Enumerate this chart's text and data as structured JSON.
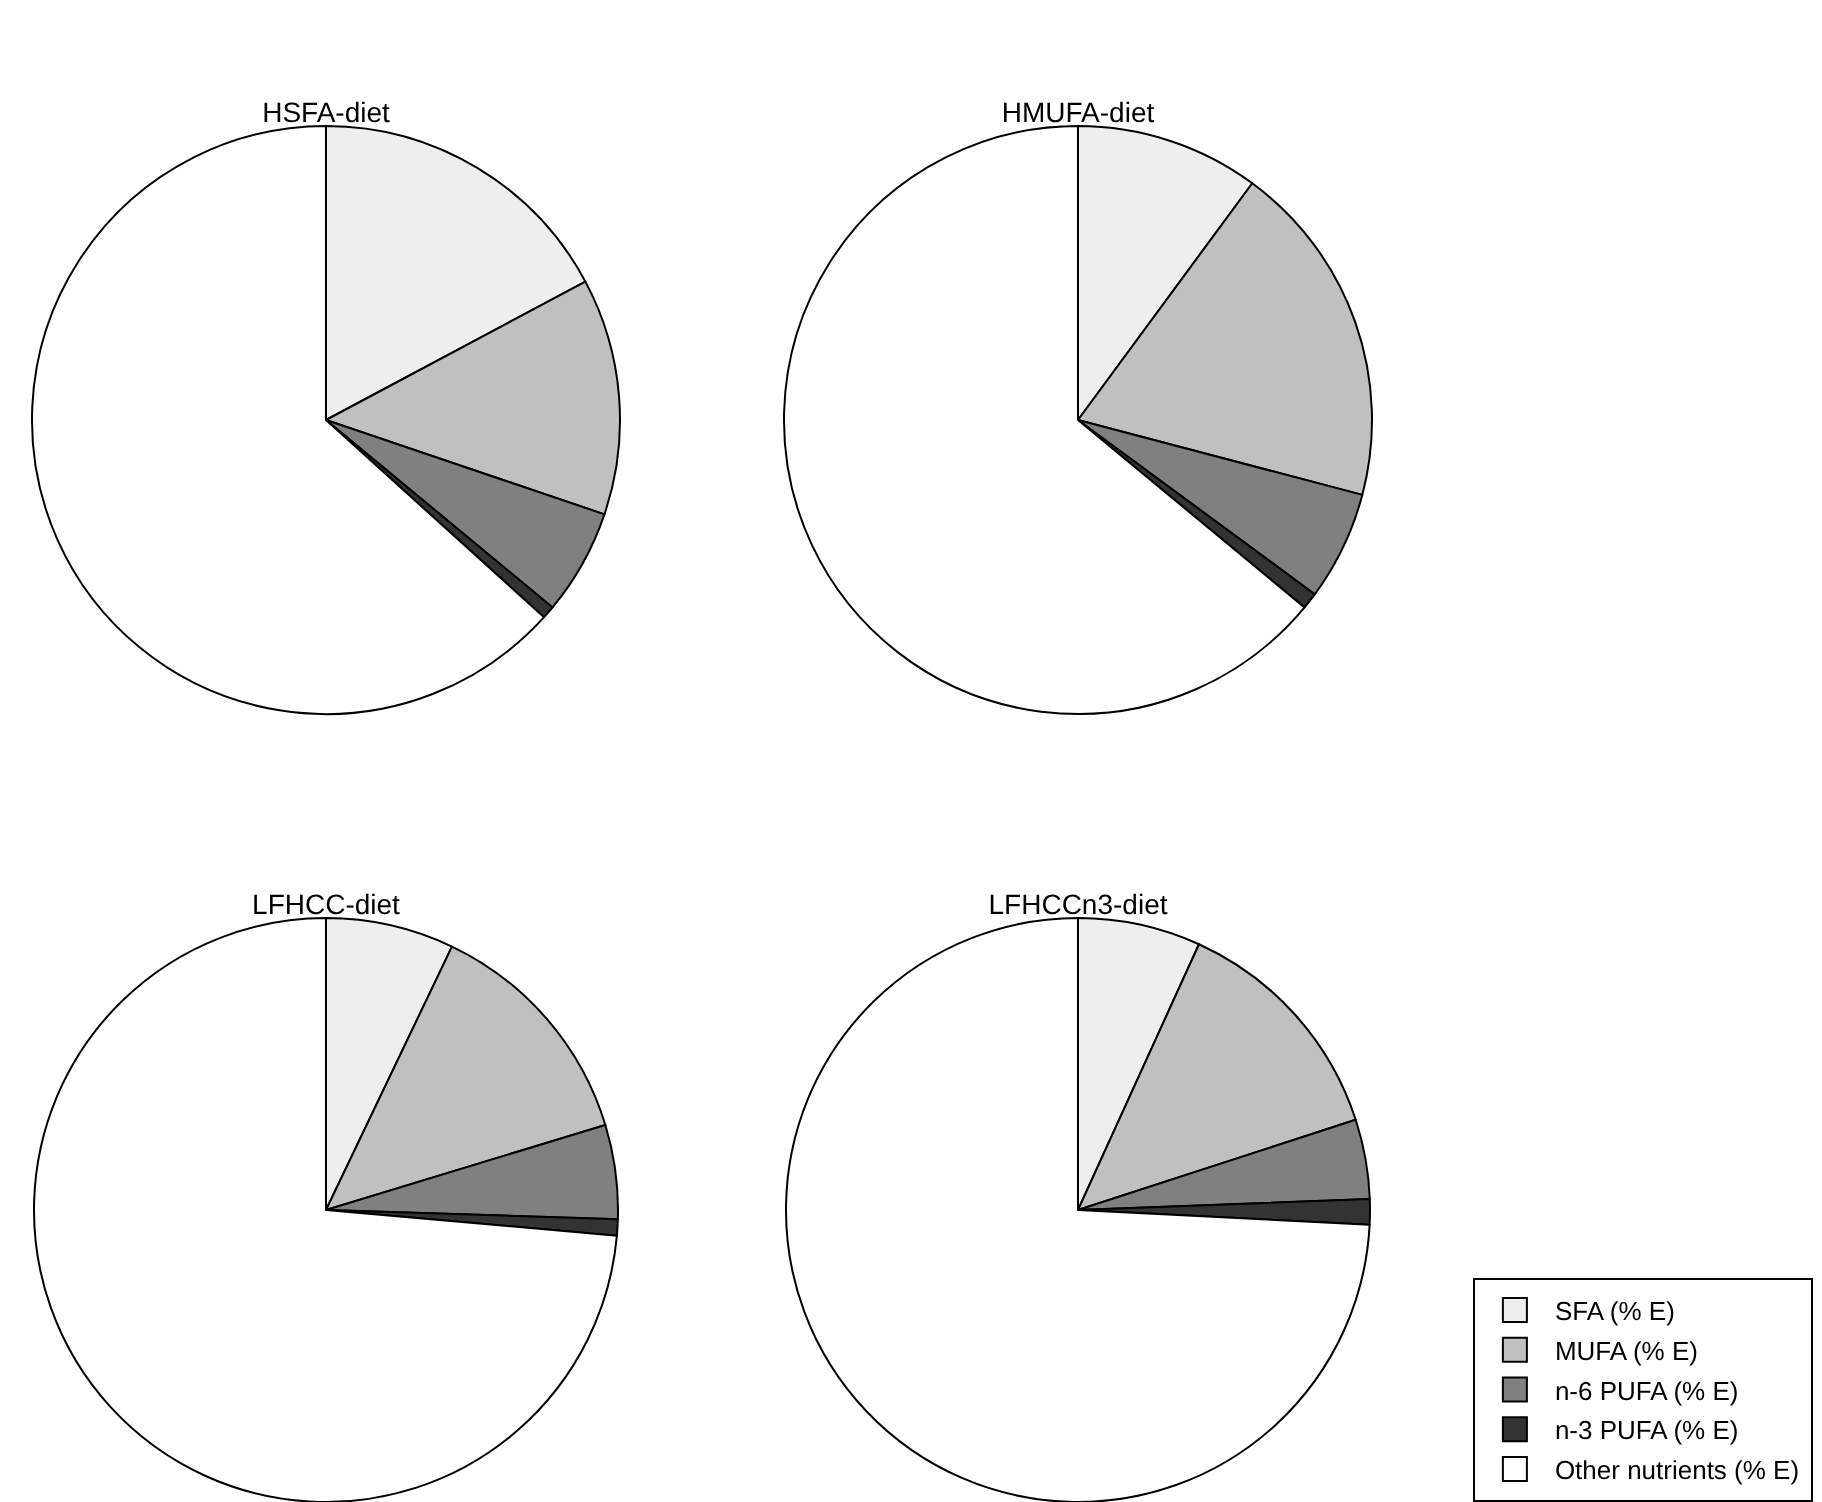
{
  "chart_data": {
    "type": "pie",
    "categories": [
      "SFA (% E)",
      "MUFA (% E)",
      "n-6 PUFA (% E)",
      "n-3 PUFA (% E)",
      "Other nutrients (% E)"
    ],
    "colors": [
      "#eeeeee",
      "#c0c0c0",
      "#808080",
      "#333333",
      "#ffffff"
    ],
    "legend": "bottom right",
    "series": [
      {
        "name": "HSFA-diet",
        "values": [
          17.2,
          13.0,
          5.8,
          0.7,
          63.3
        ]
      },
      {
        "name": "HMUFA-diet",
        "values": [
          10.1,
          19.0,
          6.0,
          0.9,
          64.0
        ]
      },
      {
        "name": "LFHCC-diet",
        "values": [
          7.1,
          13.2,
          5.2,
          0.9,
          73.6
        ]
      },
      {
        "name": "LFHCCn3-diet",
        "values": [
          6.8,
          13.2,
          4.4,
          1.4,
          74.2
        ]
      }
    ]
  }
}
